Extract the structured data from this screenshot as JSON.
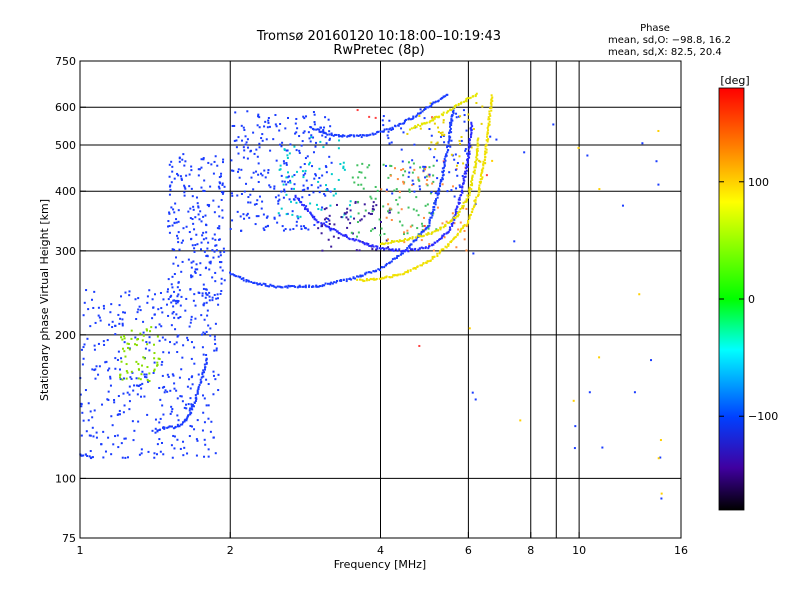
{
  "chart_data": {
    "type": "scatter",
    "title": "Tromsø 20160120 10:18:00–10:19:43",
    "subtitle": "RwPretec (8p)",
    "xlabel": "Frequency [MHz]",
    "ylabel": "Stationary phase Virtual Height [km]",
    "x_scale": "log",
    "y_scale": "log",
    "xlim": [
      1,
      16
    ],
    "ylim": [
      75,
      750
    ],
    "x_ticks": [
      1,
      2,
      4,
      6,
      8,
      10,
      16
    ],
    "x_gridlines": [
      2,
      4,
      6,
      8,
      9,
      10
    ],
    "y_ticks": [
      75,
      100,
      200,
      300,
      400,
      500,
      600,
      750
    ],
    "y_gridlines": [
      100,
      200,
      300,
      400,
      500,
      600
    ],
    "grid": true,
    "phase_stats": {
      "heading": "Phase",
      "line1": "mean, sd,O: −98.8, 16.2",
      "line2": "mean, sd,X:  82.5, 20.4"
    },
    "colorbar": {
      "label": "[deg]",
      "range": [
        -180,
        180
      ],
      "ticks": [
        100,
        0,
        -100
      ],
      "tick_labels": [
        "100",
        "0",
        "−100"
      ],
      "colors": [
        "#ff0000",
        "#ff8000",
        "#ffff00",
        "#00ff00",
        "#00ffff",
        "#0040ff",
        "#4000a0",
        "#000000"
      ]
    },
    "traces": [
      {
        "name": "",
        "color": "#1a3cff",
        "points": [
          [
            1.42,
            125
          ],
          [
            1.45,
            127
          ],
          [
            1.5,
            128
          ],
          [
            1.55,
            128
          ],
          [
            1.6,
            130
          ],
          [
            1.65,
            135
          ],
          [
            1.7,
            145
          ],
          [
            1.75,
            160
          ],
          [
            1.8,
            180
          ]
        ]
      },
      {
        "name": "",
        "color": "#1a3cff",
        "points": [
          [
            2.0,
            270
          ],
          [
            2.2,
            257
          ],
          [
            2.5,
            252
          ],
          [
            3.0,
            253
          ],
          [
            3.5,
            262
          ],
          [
            4.0,
            275
          ],
          [
            4.5,
            300
          ],
          [
            5.0,
            340
          ],
          [
            5.3,
            420
          ],
          [
            5.5,
            520
          ],
          [
            5.6,
            600
          ]
        ]
      },
      {
        "name": "",
        "color": "#2a2aff",
        "points": [
          [
            2.7,
            390
          ],
          [
            3.0,
            345
          ],
          [
            3.5,
            318
          ],
          [
            4.0,
            303
          ],
          [
            4.5,
            300
          ],
          [
            5.0,
            305
          ],
          [
            5.5,
            330
          ],
          [
            5.8,
            390
          ],
          [
            6.0,
            470
          ],
          [
            6.1,
            560
          ]
        ]
      },
      {
        "name": "",
        "color": "#1a3cff",
        "points": [
          [
            2.9,
            545
          ],
          [
            3.2,
            523
          ],
          [
            3.7,
            522
          ],
          [
            4.2,
            540
          ],
          [
            4.7,
            575
          ],
          [
            5.2,
            620
          ],
          [
            5.5,
            640
          ]
        ]
      },
      {
        "name": "",
        "color": "#e6e600",
        "points": [
          [
            4.6,
            540
          ],
          [
            5.0,
            560
          ],
          [
            5.5,
            590
          ],
          [
            6.0,
            625
          ],
          [
            6.3,
            640
          ]
        ]
      },
      {
        "name": "",
        "color": "#f0e000",
        "points": [
          [
            3.6,
            260
          ],
          [
            4.0,
            262
          ],
          [
            4.5,
            270
          ],
          [
            5.0,
            285
          ],
          [
            5.5,
            310
          ],
          [
            6.0,
            345
          ],
          [
            6.3,
            400
          ],
          [
            6.5,
            480
          ],
          [
            6.6,
            560
          ],
          [
            6.7,
            640
          ]
        ]
      },
      {
        "name": "",
        "color": "#e8e000",
        "points": [
          [
            4.0,
            310
          ],
          [
            4.6,
            318
          ],
          [
            5.2,
            330
          ],
          [
            5.7,
            355
          ],
          [
            6.0,
            390
          ],
          [
            6.2,
            450
          ],
          [
            6.3,
            520
          ]
        ]
      },
      {
        "name": "",
        "color": "#1a3cff",
        "points": [
          [
            1.0,
            112
          ],
          [
            1.03,
            112
          ],
          [
            1.07,
            110
          ]
        ]
      }
    ],
    "clusters": [
      {
        "color": "#1a3cff",
        "x_range": [
          1.0,
          1.9
        ],
        "y_range": [
          110,
          250
        ],
        "count": 380
      },
      {
        "color": "#88dd00",
        "x_range": [
          1.2,
          1.45
        ],
        "y_range": [
          160,
          210
        ],
        "count": 60
      },
      {
        "color": "#1a3cff",
        "x_range": [
          1.5,
          1.95
        ],
        "y_range": [
          230,
          480
        ],
        "count": 250
      },
      {
        "color": "#1a3cff",
        "x_range": [
          2.0,
          3.2
        ],
        "y_range": [
          330,
          590
        ],
        "count": 260
      },
      {
        "color": "#00cccc",
        "x_range": [
          2.5,
          3.5
        ],
        "y_range": [
          340,
          520
        ],
        "count": 60
      },
      {
        "color": "#3a1a9a",
        "x_range": [
          3.0,
          4.2
        ],
        "y_range": [
          300,
          380
        ],
        "count": 60
      },
      {
        "color": "#40c060",
        "x_range": [
          3.5,
          5.2
        ],
        "y_range": [
          320,
          460
        ],
        "count": 90
      },
      {
        "color": "#ff8c40",
        "x_range": [
          4.0,
          6.0
        ],
        "y_range": [
          300,
          450
        ],
        "count": 60
      },
      {
        "color": "#1a3cff",
        "x_range": [
          4.0,
          6.0
        ],
        "y_range": [
          380,
          600
        ],
        "count": 80
      },
      {
        "color": "#e6d000",
        "x_range": [
          4.5,
          6.5
        ],
        "y_range": [
          450,
          620
        ],
        "count": 40
      },
      {
        "color": "#1a3cff",
        "x_range": [
          6.0,
          15.0
        ],
        "y_range": [
          90,
          600
        ],
        "count": 22
      },
      {
        "color": "#ffd000",
        "x_range": [
          6.0,
          15.0
        ],
        "y_range": [
          90,
          600
        ],
        "count": 12
      },
      {
        "color": "#ff4040",
        "x_range": [
          3.0,
          7.5
        ],
        "y_range": [
          150,
          600
        ],
        "count": 8
      }
    ]
  }
}
